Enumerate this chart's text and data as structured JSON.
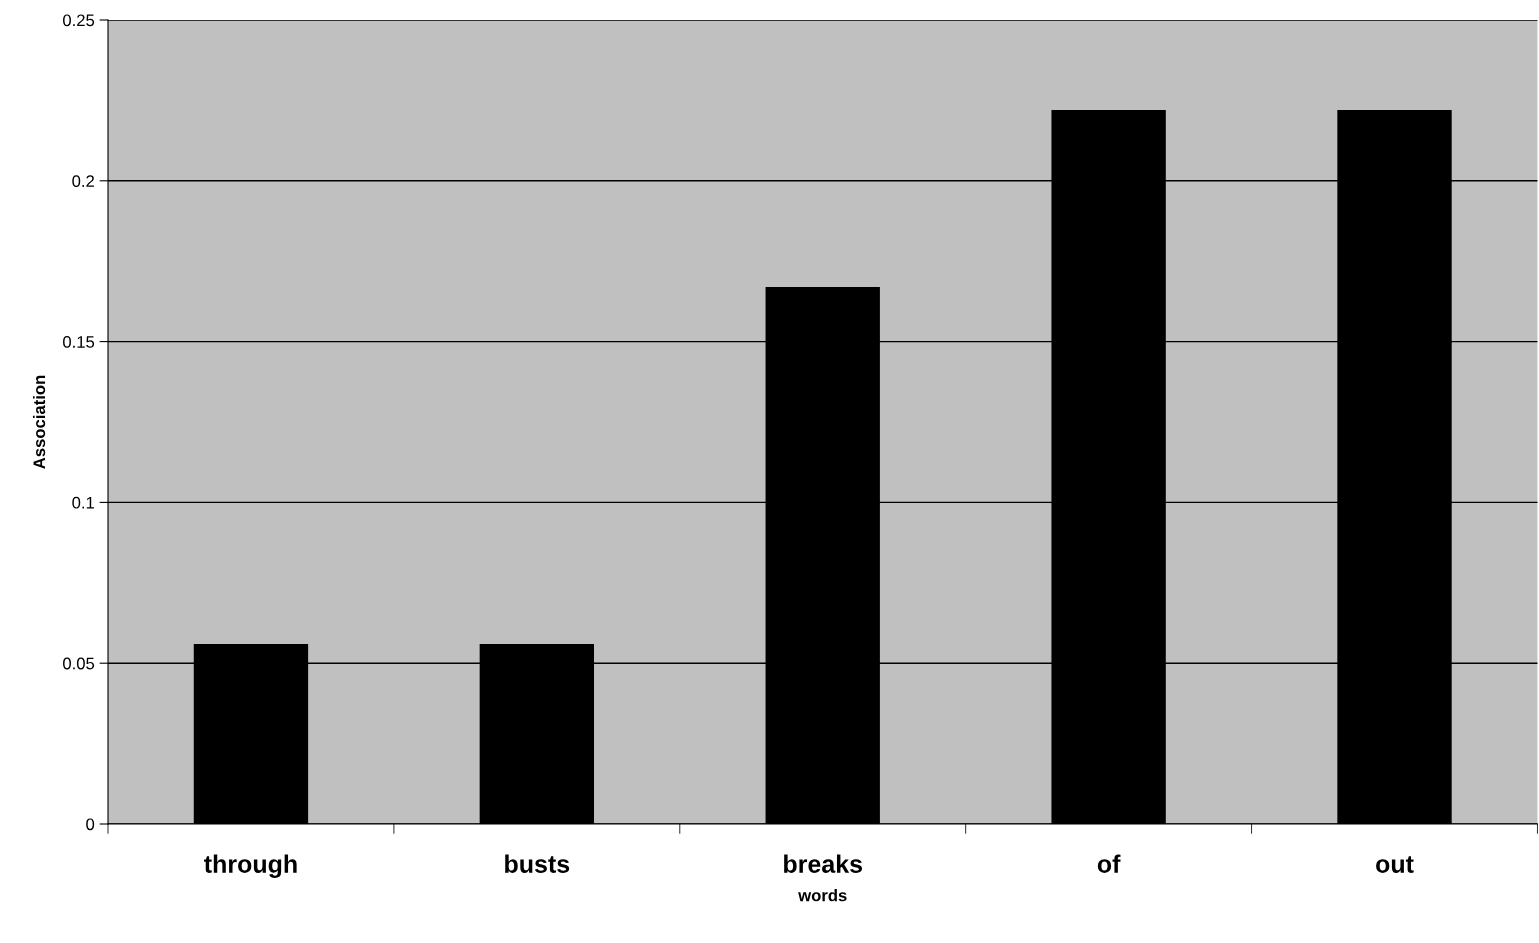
{
  "chart_data": {
    "type": "bar",
    "xlabel": "words",
    "ylabel": "Association",
    "categories": [
      "through",
      "busts",
      "breaks",
      "of",
      "out"
    ],
    "values": [
      0.056,
      0.056,
      0.167,
      0.222,
      0.222
    ],
    "color": "#000000",
    "ylim": [
      0,
      0.25
    ],
    "yticks": [
      0,
      0.05,
      0.1,
      0.15,
      0.2,
      0.25
    ],
    "grid": "y"
  }
}
